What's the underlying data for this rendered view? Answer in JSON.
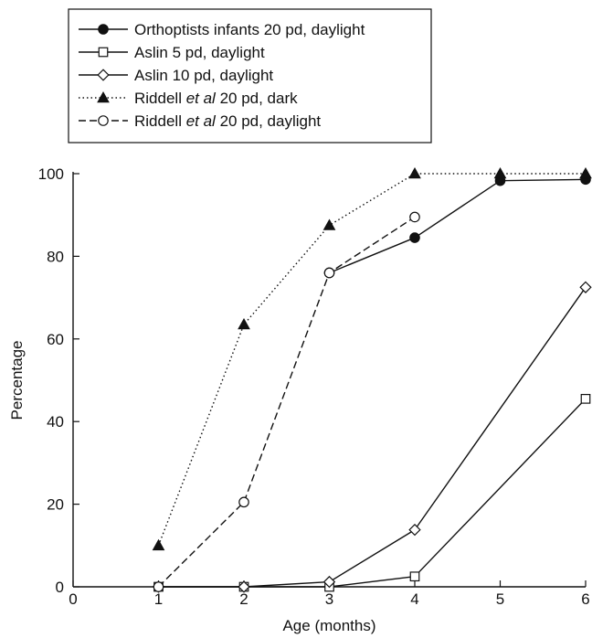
{
  "chart_data": {
    "type": "line",
    "xlabel": "Age (months)",
    "ylabel": "Percentage",
    "xlim": [
      0,
      6
    ],
    "ylim": [
      0,
      100
    ],
    "x_ticks": [
      0,
      1,
      2,
      3,
      4,
      5,
      6
    ],
    "y_ticks": [
      0,
      20,
      40,
      60,
      80,
      100
    ],
    "grid": false,
    "legend_position": "top-left",
    "series": [
      {
        "key": "orthoptists-20pd-daylight",
        "name": "Orthoptists infants 20 pd, daylight",
        "legend_parts": [
          {
            "text": "Orthoptists infants 20 pd, daylight",
            "italic": false
          }
        ],
        "marker": "filled-circle",
        "line_style": "solid",
        "x": [
          3,
          4,
          5,
          6
        ],
        "y": [
          76,
          84.5,
          98.3,
          98.6
        ]
      },
      {
        "key": "aslin-5pd-daylight",
        "name": "Aslin 5 pd, daylight",
        "legend_parts": [
          {
            "text": "Aslin 5 pd, daylight",
            "italic": false
          }
        ],
        "marker": "open-square",
        "line_style": "solid",
        "x": [
          1,
          2,
          3,
          4,
          6
        ],
        "y": [
          0,
          0,
          0,
          2.5,
          45.5
        ]
      },
      {
        "key": "aslin-10pd-daylight",
        "name": "Aslin 10 pd, daylight",
        "legend_parts": [
          {
            "text": "Aslin 10 pd, daylight",
            "italic": false
          }
        ],
        "marker": "open-diamond",
        "line_style": "solid",
        "x": [
          1,
          2,
          3,
          4,
          6
        ],
        "y": [
          0,
          0,
          1.2,
          13.8,
          72.5
        ]
      },
      {
        "key": "riddell-20pd-dark",
        "name": "Riddell et al 20 pd, dark",
        "legend_parts": [
          {
            "text": "Riddell ",
            "italic": false
          },
          {
            "text": "et al",
            "italic": true
          },
          {
            "text": " 20 pd, dark",
            "italic": false
          }
        ],
        "marker": "filled-triangle",
        "line_style": "dotted",
        "x": [
          1,
          2,
          3,
          4,
          5,
          6
        ],
        "y": [
          10,
          63.5,
          87.5,
          100,
          100,
          100
        ]
      },
      {
        "key": "riddell-20pd-daylight",
        "name": "Riddell et al 20 pd, daylight",
        "legend_parts": [
          {
            "text": "Riddell ",
            "italic": false
          },
          {
            "text": "et al",
            "italic": true
          },
          {
            "text": " 20 pd, daylight",
            "italic": false
          }
        ],
        "marker": "open-circle",
        "line_style": "dashed",
        "x": [
          1,
          2,
          3,
          4
        ],
        "y": [
          0,
          20.5,
          76,
          89.5
        ]
      }
    ]
  }
}
